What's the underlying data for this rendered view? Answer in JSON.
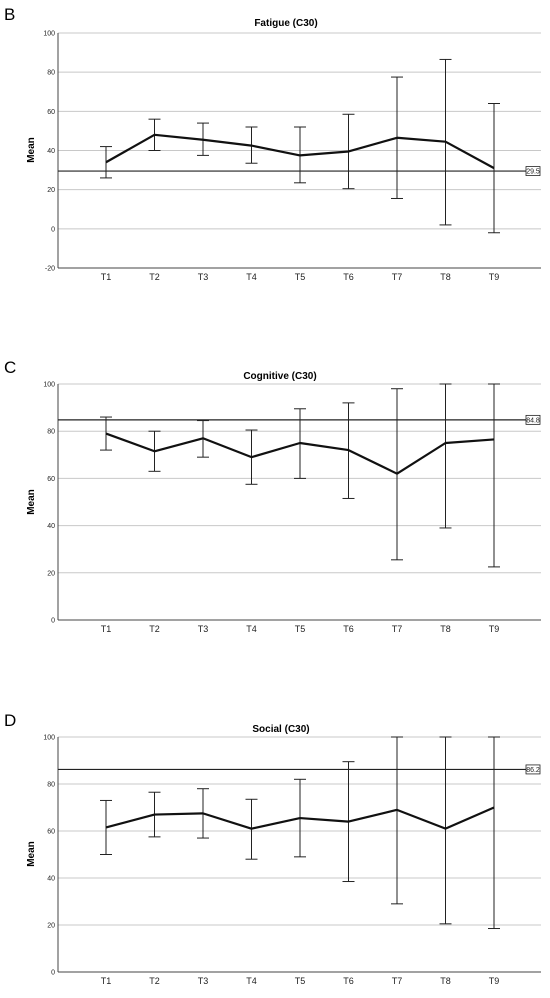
{
  "panels": [
    {
      "letter": "B",
      "ylabel": "Mean"
    },
    {
      "letter": "C",
      "ylabel": "Mean"
    },
    {
      "letter": "D",
      "ylabel": "Mean"
    }
  ],
  "chart_data": [
    {
      "type": "line",
      "title": "Fatigue (C30)",
      "ylabel": "Mean",
      "xlabel": "",
      "categories": [
        "T1",
        "T2",
        "T3",
        "T4",
        "T5",
        "T6",
        "T7",
        "T8",
        "T9"
      ],
      "values": [
        34,
        48,
        45.5,
        42.5,
        37.5,
        39.5,
        46.5,
        44.5,
        31
      ],
      "error_low": [
        26,
        40,
        37.5,
        33.5,
        23.5,
        20.5,
        15.5,
        2,
        -2
      ],
      "error_high": [
        42,
        56,
        54,
        52,
        52,
        58.5,
        77.5,
        86.5,
        64
      ],
      "reference_line": {
        "value": 29.5,
        "label": "29.5"
      },
      "ylim": [
        -20,
        100
      ],
      "yticks": [
        -20,
        0,
        20,
        40,
        60,
        80,
        100
      ],
      "grid": true
    },
    {
      "type": "line",
      "title": "Cognitive (C30)",
      "ylabel": "Mean",
      "xlabel": "",
      "categories": [
        "T1",
        "T2",
        "T3",
        "T4",
        "T5",
        "T6",
        "T7",
        "T8",
        "T9"
      ],
      "values": [
        79,
        71.5,
        77,
        69,
        75,
        72,
        62,
        75,
        76.5
      ],
      "error_low": [
        72,
        63,
        69,
        57.5,
        60,
        51.5,
        25.5,
        39,
        22.5
      ],
      "error_high": [
        86,
        80,
        84.5,
        80.5,
        89.5,
        92,
        98,
        100,
        100
      ],
      "reference_line": {
        "value": 84.8,
        "label": "84.8"
      },
      "ylim": [
        0,
        100
      ],
      "yticks": [
        0,
        20,
        40,
        60,
        80,
        100
      ],
      "grid": true
    },
    {
      "type": "line",
      "title": "Social (C30)",
      "ylabel": "Mean",
      "xlabel": "",
      "categories": [
        "T1",
        "T2",
        "T3",
        "T4",
        "T5",
        "T6",
        "T7",
        "T8",
        "T9"
      ],
      "values": [
        61.5,
        67,
        67.5,
        61,
        65.5,
        64,
        69,
        61,
        70
      ],
      "error_low": [
        50,
        57.5,
        57,
        48,
        49,
        38.5,
        29,
        20.5,
        18.5
      ],
      "error_high": [
        73,
        76.5,
        78,
        73.5,
        82,
        89.5,
        100,
        100,
        100
      ],
      "reference_line": {
        "value": 86.2,
        "label": "86.2"
      },
      "ylim": [
        0,
        100
      ],
      "yticks": [
        0,
        20,
        40,
        60,
        80,
        100
      ],
      "grid": true
    }
  ]
}
